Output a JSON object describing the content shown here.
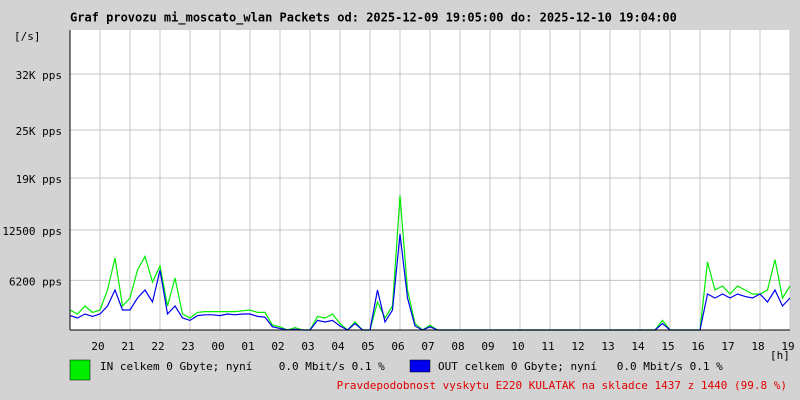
{
  "chart_data": {
    "type": "line",
    "title": "Graf provozu mi_moscato_wlan Packets od: 2025-12-09 19:05:00 do: 2025-12-10 19:04:00",
    "y_unit": "[/s]",
    "x_unit": "[h]",
    "x": [
      0,
      0.25,
      0.5,
      0.75,
      1,
      1.25,
      1.5,
      1.75,
      2,
      2.25,
      2.5,
      2.75,
      3,
      3.25,
      3.5,
      3.75,
      4,
      4.25,
      4.5,
      4.75,
      5,
      5.25,
      5.5,
      5.75,
      6,
      6.25,
      6.5,
      6.75,
      7,
      7.25,
      7.5,
      7.75,
      8,
      8.25,
      8.5,
      8.75,
      9,
      9.25,
      9.5,
      9.75,
      10,
      10.25,
      10.5,
      10.75,
      11,
      11.25,
      11.5,
      11.75,
      12,
      12.25,
      12.5,
      12.75,
      13,
      13.25,
      13.5,
      13.75,
      14,
      14.25,
      14.5,
      14.75,
      15,
      15.25,
      15.5,
      15.75,
      16,
      16.25,
      16.5,
      16.75,
      17,
      17.25,
      17.5,
      17.75,
      18,
      18.25,
      18.5,
      18.75,
      19,
      19.25,
      19.5,
      19.75,
      20,
      20.25,
      20.5,
      20.75,
      21,
      21.25,
      21.5,
      21.75,
      22,
      22.25,
      22.5,
      22.75,
      23,
      23.25,
      23.5,
      23.75,
      24
    ],
    "series": [
      {
        "name": "IN celkem 0 Gbyte; nyní    0.0 Mbit/s 0.1 %",
        "color": "#00ee00",
        "values": [
          2500,
          2000,
          3000,
          2200,
          2500,
          5000,
          9000,
          3000,
          4000,
          7500,
          9200,
          6000,
          8000,
          3000,
          6500,
          2000,
          1500,
          2200,
          2300,
          2300,
          2300,
          2300,
          2300,
          2400,
          2500,
          2200,
          2200,
          600,
          400,
          0,
          300,
          0,
          0,
          1700,
          1500,
          2000,
          800,
          0,
          1000,
          0,
          0,
          3500,
          1500,
          3000,
          16800,
          5000,
          800,
          0,
          600,
          0,
          0,
          0,
          0,
          0,
          0,
          0,
          0,
          0,
          0,
          0,
          0,
          0,
          0,
          0,
          0,
          0,
          0,
          0,
          0,
          0,
          0,
          0,
          0,
          0,
          0,
          0,
          0,
          0,
          0,
          1200,
          0,
          0,
          0,
          0,
          0,
          8500,
          5000,
          5500,
          4500,
          5500,
          5000,
          4500,
          4500,
          5000,
          8800,
          4000,
          5500
        ]
      },
      {
        "name": "OUT celkem 0 Gbyte; nyní   0.0 Mbit/s 0.1 %",
        "color": "#0000ee",
        "values": [
          1800,
          1500,
          2000,
          1700,
          2000,
          3000,
          5000,
          2500,
          2500,
          4000,
          5000,
          3500,
          7500,
          2000,
          3000,
          1500,
          1200,
          1800,
          1900,
          1900,
          1800,
          2000,
          1900,
          2000,
          2000,
          1700,
          1600,
          400,
          200,
          0,
          100,
          0,
          0,
          1200,
          1000,
          1200,
          500,
          0,
          800,
          0,
          0,
          5000,
          1000,
          2500,
          12000,
          4000,
          500,
          0,
          400,
          0,
          0,
          0,
          0,
          0,
          0,
          0,
          0,
          0,
          0,
          0,
          0,
          0,
          0,
          0,
          0,
          0,
          0,
          0,
          0,
          0,
          0,
          0,
          0,
          0,
          0,
          0,
          0,
          0,
          0,
          800,
          0,
          0,
          0,
          0,
          0,
          4500,
          4000,
          4500,
          4000,
          4500,
          4200,
          4000,
          4500,
          3500,
          5000,
          3000,
          4000
        ]
      }
    ],
    "xlim": [
      0,
      24
    ],
    "xticks": [
      {
        "value": 1,
        "label": "20"
      },
      {
        "value": 2,
        "label": "21"
      },
      {
        "value": 3,
        "label": "22"
      },
      {
        "value": 4,
        "label": "23"
      },
      {
        "value": 5,
        "label": "00"
      },
      {
        "value": 6,
        "label": "01"
      },
      {
        "value": 7,
        "label": "02"
      },
      {
        "value": 8,
        "label": "03"
      },
      {
        "value": 9,
        "label": "04"
      },
      {
        "value": 10,
        "label": "05"
      },
      {
        "value": 11,
        "label": "06"
      },
      {
        "value": 12,
        "label": "07"
      },
      {
        "value": 13,
        "label": "08"
      },
      {
        "value": 14,
        "label": "09"
      },
      {
        "value": 15,
        "label": "10"
      },
      {
        "value": 16,
        "label": "11"
      },
      {
        "value": 17,
        "label": "12"
      },
      {
        "value": 18,
        "label": "13"
      },
      {
        "value": 19,
        "label": "14"
      },
      {
        "value": 20,
        "label": "15"
      },
      {
        "value": 21,
        "label": "16"
      },
      {
        "value": 22,
        "label": "17"
      },
      {
        "value": 23,
        "label": "18"
      },
      {
        "value": 24,
        "label": "19"
      }
    ],
    "ylim": [
      0,
      37500
    ],
    "yticks": [
      {
        "value": 6200,
        "label": "6200 pps"
      },
      {
        "value": 12500,
        "label": "12500 pps"
      },
      {
        "value": 19000,
        "label": "19K pps"
      },
      {
        "value": 25000,
        "label": "25K pps"
      },
      {
        "value": 32000,
        "label": "32K pps"
      }
    ],
    "grid": true,
    "note": "Pravdepodobnost vyskytu E220 KULATAK na skladce 1437 z 1440 (99.8 %)"
  }
}
